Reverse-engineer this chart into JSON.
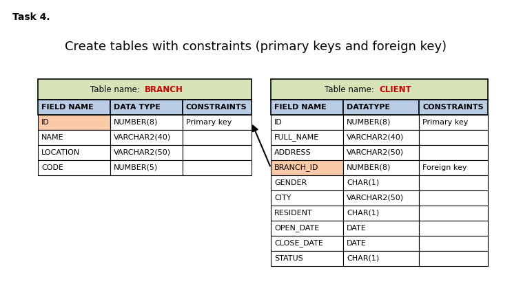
{
  "title": "Create tables with constraints (primary keys and foreign key)",
  "task_label": "Task 4.",
  "branch_table": {
    "name": "BRANCH",
    "header_bg": "#d6e4b8",
    "col_header_bg": "#b8cce4",
    "headers": [
      "FIELD NAME",
      "DATA TYPE",
      "CONSTRAINTS"
    ],
    "rows": [
      [
        "ID",
        "NUMBER(8)",
        "Primary key"
      ],
      [
        "NAME",
        "VARCHAR2(40)",
        ""
      ],
      [
        "LOCATION",
        "VARCHAR2(50)",
        ""
      ],
      [
        "CODE",
        "NUMBER(5)",
        ""
      ]
    ],
    "highlight_row": 0,
    "highlight_color": "#f9c9a8"
  },
  "client_table": {
    "name": "CLIENT",
    "header_bg": "#d6e4b8",
    "col_header_bg": "#b8cce4",
    "headers": [
      "FIELD NAME",
      "DATATYPE",
      "CONSTRAINTS"
    ],
    "rows": [
      [
        "ID",
        "NUMBER(8)",
        "Primary key"
      ],
      [
        "FULL_NAME",
        "VARCHAR2(40)",
        ""
      ],
      [
        "ADDRESS",
        "VARCHAR2(50)",
        ""
      ],
      [
        "BRANCH_ID",
        "NUMBER(8)",
        "Foreign key"
      ],
      [
        "GENDER",
        "CHAR(1)",
        ""
      ],
      [
        "CITY",
        "VARCHAR2(50)",
        ""
      ],
      [
        "RESIDENT",
        "CHAR(1)",
        ""
      ],
      [
        "OPEN_DATE",
        "DATE",
        ""
      ],
      [
        "CLOSE_DATE",
        "DATE",
        ""
      ],
      [
        "STATUS",
        "CHAR(1)",
        ""
      ]
    ],
    "highlight_row": 3,
    "highlight_color": "#f9c9a8"
  },
  "bg_color": "#ffffff",
  "border_color": "#000000",
  "text_color": "#000000",
  "highlight_name_color": "#cc0000",
  "title_fontsize": 13,
  "task_fontsize": 10,
  "header_fontsize": 8,
  "cell_fontsize": 8
}
